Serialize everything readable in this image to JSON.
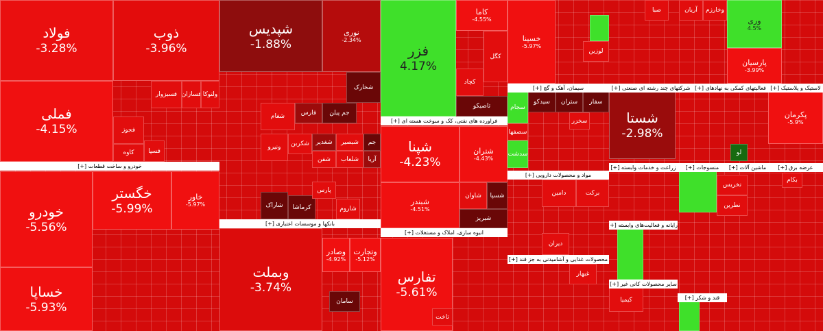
{
  "sectors": [
    "خودرو و ساخت قطعات [+]",
    "بانکها و موسسات اعتباری [+]",
    "فراورده های نفتی، کک و سوخت هسته ای [+]",
    "انبوه سازی، املاک و مستغلات [+]",
    "سیمان، آهک و گچ [+]",
    "مواد و محصولات دارویی [+]",
    "محصولات غذایی و آشامیدنی به جز قند [+]",
    "شرکتهای چند رشته ای صنعتی [+]",
    "فعالیتهای کمکی به نهادهای [+]",
    "لاستیک و پلاستیک [+]",
    "زراعت و خدمات وابسته [+]",
    "منسوجات [+]",
    "ماشین آلات [+]",
    "عرضه برق [+]",
    "رایانه و فعالیت‌های وابسته [+]",
    "سایر محصولات کانی غیر [+]",
    "قند و شکر [+]"
  ],
  "tiles": [
    {
      "name": "فولاد",
      "change": "-3.28%"
    },
    {
      "name": "ذوب",
      "change": "-3.96%"
    },
    {
      "name": "فملی",
      "change": "-4.15%"
    },
    {
      "name": "خودرو",
      "change": "-5.56%"
    },
    {
      "name": "خساپا",
      "change": "-5.93%"
    },
    {
      "name": "خگستر",
      "change": "-5.99%"
    },
    {
      "name": "خاور",
      "change": "-5.97%"
    },
    {
      "name": "شپدیس",
      "change": "-1.88%"
    },
    {
      "name": "نوری",
      "change": "-2.34%"
    },
    {
      "name": "وبملت",
      "change": "-3.74%"
    },
    {
      "name": "فزر",
      "change": "4.17%"
    },
    {
      "name": "شپنا",
      "change": "-4.23%"
    },
    {
      "name": "شبندر",
      "change": "-4.51%"
    },
    {
      "name": "شتران",
      "change": "-4.43%"
    },
    {
      "name": "تفارس",
      "change": "-5.61%"
    },
    {
      "name": "خسینا",
      "change": "-5.97%"
    },
    {
      "name": "شستا",
      "change": "-2.98%"
    },
    {
      "name": "وری",
      "change": "4.5%"
    },
    {
      "name": "پارسیان",
      "change": "-3.99%"
    },
    {
      "name": "پکرمان",
      "change": "-5.9%"
    },
    {
      "name": "وصادر",
      "change": "-4.92%"
    },
    {
      "name": "وتجارت",
      "change": "-5.12%"
    },
    {
      "name": "کاما",
      "change": "-4.55%"
    }
  ],
  "labels": [
    "فسبزوار",
    "فسازان",
    "ولتوکا",
    "فجوز",
    "کاوه",
    "فسپا",
    "شخارک",
    "جم پیلن",
    "فارس",
    "شغدیر",
    "شبصیر",
    "جم",
    "آریا",
    "شلعاب",
    "شفن",
    "شکربن",
    "شاراک",
    "کرماشا",
    "پارس",
    "شاروم",
    "شغام",
    "ونیرو",
    "شبریز",
    "شاوان",
    "شسپا",
    "تاصیکو",
    "کچاد",
    "کگل",
    "سجام",
    "سدشت",
    "سصفها",
    "سیدکو",
    "ستران",
    "سفار",
    "سخزر",
    "دامین",
    "برکت",
    "دیران",
    "غبهار",
    "صبا",
    "آریان",
    "وخارزم",
    "لو",
    "نخریس",
    "نطرین",
    "بکام",
    "سامان",
    "تاخت",
    "لوزین",
    "کیمیا"
  ]
}
